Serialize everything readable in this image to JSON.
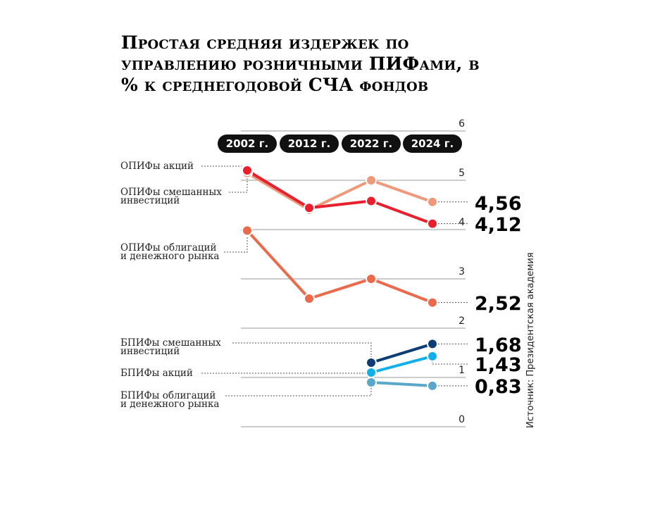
{
  "title": "Простая средняя издержек по управлению розничными ПИФами, в % к среднегодовой СЧА фондов",
  "source": "Источник: Президентская академия",
  "chart_data": {
    "type": "line",
    "title": "Простая средняя издержек по управлению розничными ПИФами, в % к среднегодовой СЧА фондов",
    "categories": [
      "2002 г.",
      "2012 г.",
      "2022 г.",
      "2024 г."
    ],
    "ylim": [
      0,
      6
    ],
    "yticks": [
      0,
      1,
      2,
      3,
      4,
      5,
      6
    ],
    "grid": true,
    "series": [
      {
        "name": "ОПИФы смешанных инвестиций",
        "color": "#f0987a",
        "values": [
          5.15,
          4.4,
          5.0,
          4.56
        ],
        "end_label": "4,56"
      },
      {
        "name": "ОПИФы акций",
        "color": "#e8202e",
        "values": [
          5.2,
          4.44,
          4.58,
          4.12
        ],
        "end_label": "4,12"
      },
      {
        "name": "ОПИФы облигаций и денежного рынка",
        "color": "#ec6a4c",
        "values": [
          3.98,
          2.6,
          3.0,
          2.52
        ],
        "end_label": "2,52"
      },
      {
        "name": "БПИФы смешанных инвестиций",
        "color": "#0c3d74",
        "values": [
          null,
          null,
          1.3,
          1.68
        ],
        "end_label": "1,68"
      },
      {
        "name": "БПИФы акций",
        "color": "#12b0ea",
        "values": [
          null,
          null,
          1.1,
          1.43
        ],
        "end_label": "1,43"
      },
      {
        "name": "БПИФы облигаций и денежного рынка",
        "color": "#5aa7c9",
        "values": [
          null,
          null,
          0.9,
          0.83
        ],
        "end_label": "0,83"
      }
    ],
    "series_labels": [
      [
        "ОПИФы акций"
      ],
      [
        "ОПИФы смешанных",
        "инвестиций"
      ],
      [
        "ОПИФы облигаций",
        "и денежного рынка"
      ],
      [
        "БПИФы смешанных",
        "инвестиций"
      ],
      [
        "БПИФы акций"
      ],
      [
        "БПИФы облигаций",
        "и денежного рынка"
      ]
    ]
  }
}
